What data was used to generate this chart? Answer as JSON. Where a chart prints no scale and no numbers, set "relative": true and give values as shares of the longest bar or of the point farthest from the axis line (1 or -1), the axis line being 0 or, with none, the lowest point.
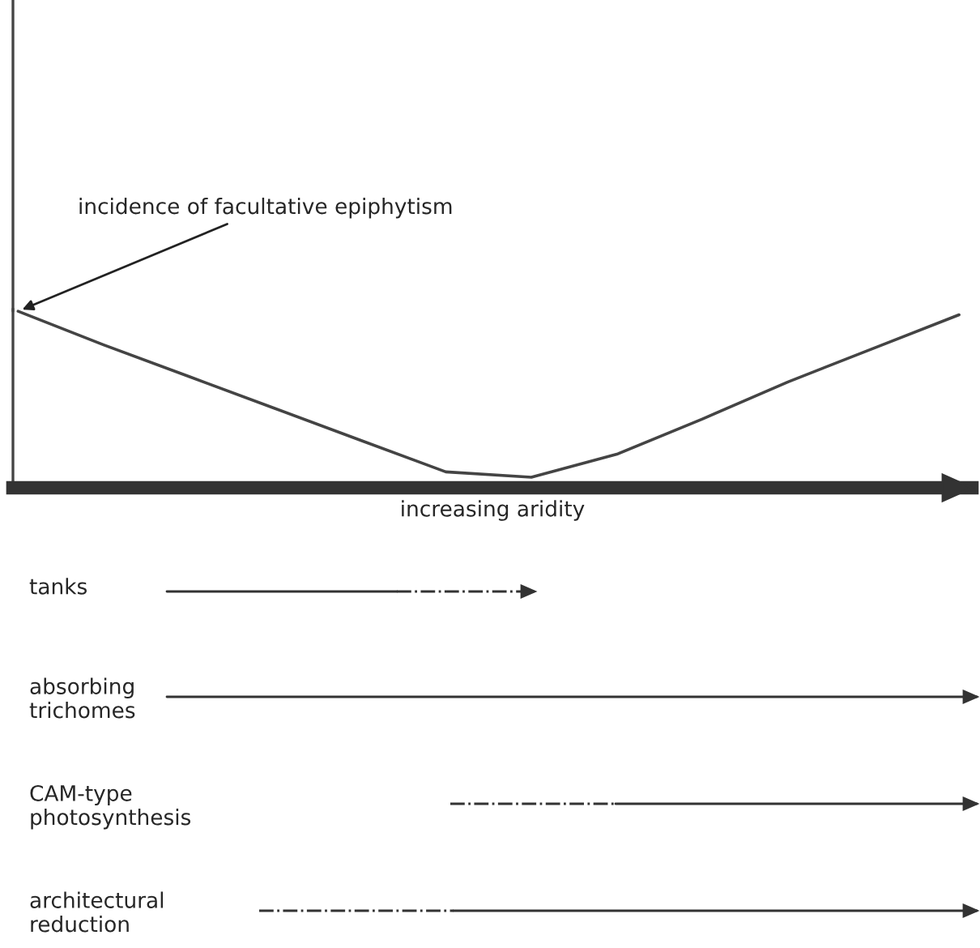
{
  "chart_data": {
    "type": "line",
    "relative": true,
    "xlabel": "increasing aridity",
    "categories": [
      null,
      null,
      null,
      null,
      null,
      null,
      null,
      null,
      null,
      null,
      null,
      null
    ],
    "series": [
      {
        "color": "#444444",
        "values": [
          1,
          0.81,
          0.63,
          0.45,
          0.27,
          0.09,
          0.06,
          0.19,
          0.39,
          0.6,
          0.79,
          0.98
        ]
      }
    ],
    "annotations": [
      "incidence of facultative epiphytism",
      "tanks",
      "absorbing\ntrichomes",
      "CAM-type\nphotosynthesis",
      "architectural\nreduction"
    ],
    "grid": false,
    "legend": false,
    "marker": "none",
    "line_style": "solid"
  }
}
